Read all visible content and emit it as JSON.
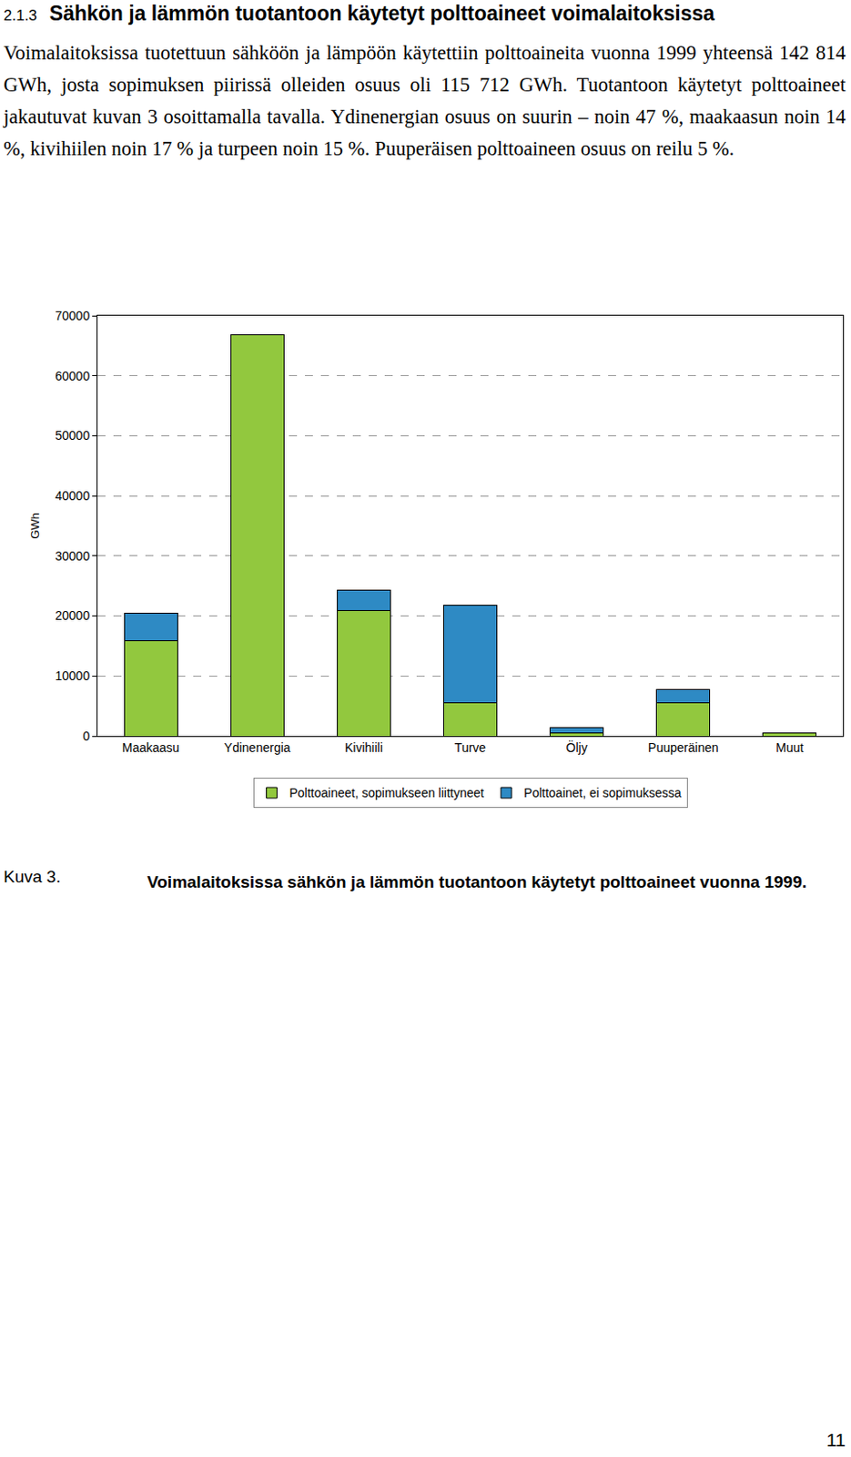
{
  "document": {
    "section": "2.1.3",
    "heading": "Sähkön ja lämmön tuotantoon käytetyt polttoaineet voimalaitoksissa",
    "paragraph": "Voimalaitoksissa tuotettuun sähköön ja lämpöön käytettiin polttoaineita vuonna 1999 yhteensä 142 814 GWh, josta sopimuksen piirissä olleiden osuus oli 115 712 GWh. Tuotantoon käytetyt polttoaineet jakautuvat kuvan 3 osoittamalla tavalla. Ydinenergian osuus on suurin – noin 47 %, maakaasun noin 14 %, kivihiilen noin 17 % ja turpeen noin 15 %. Puuperäisen polttoaineen osuus on reilu 5 %.",
    "caption_label": "Kuva 3.",
    "caption": "Voimalaitoksissa sähkön ja lämmön tuotantoon käytetyt polttoaineet vuonna 1999.",
    "page_number": "11"
  },
  "chart_data": {
    "type": "bar",
    "stacked": true,
    "y_label": "GWh",
    "categories": [
      "Maakaasu",
      "Ydinenergia",
      "Kivihiili",
      "Turve",
      "Öljy",
      "Puuperäinen",
      "Muut"
    ],
    "series": [
      {
        "name": "Polttoaineet, sopimukseen liittyneet",
        "color": "#92c83e",
        "values": [
          15900,
          66800,
          20900,
          5600,
          500,
          5600,
          450
        ]
      },
      {
        "name": "Polttoainet, ei sopimuksessa",
        "color": "#2e8ac4",
        "values": [
          4500,
          0,
          3400,
          16200,
          900,
          2100,
          0
        ]
      }
    ],
    "ylim": [
      0,
      70000
    ],
    "yticks": [
      0,
      10000,
      20000,
      30000,
      40000,
      50000,
      60000,
      70000
    ],
    "grid": true,
    "legend": "bottom"
  }
}
